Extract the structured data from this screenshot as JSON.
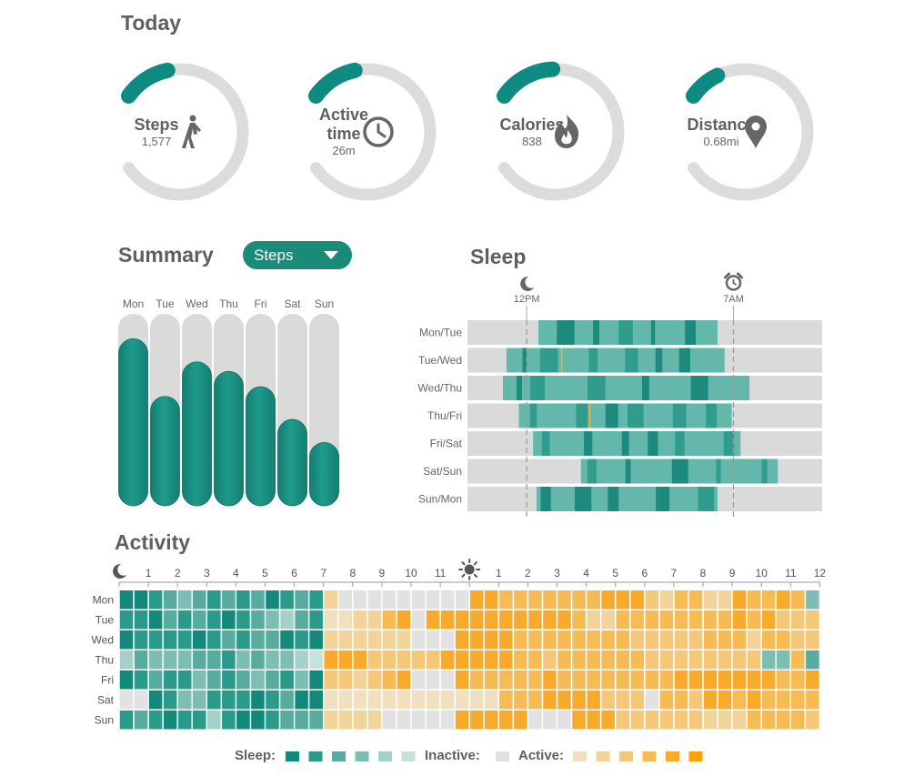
{
  "today": {
    "title": "Today",
    "rings": [
      {
        "id": "steps",
        "label": "Steps",
        "value": "1,577",
        "progress": 0.15,
        "icon": "walking-person-icon"
      },
      {
        "id": "active",
        "label": "Active",
        "label2": "time",
        "value": "26m",
        "progress": 0.15,
        "icon": "clock-icon"
      },
      {
        "id": "calories",
        "label": "Calories",
        "value": "838",
        "progress": 0.18,
        "icon": "flame-icon"
      },
      {
        "id": "distance",
        "label": "Distance",
        "value": "0.68mi",
        "progress": 0.1,
        "icon": "map-pin-icon"
      }
    ]
  },
  "summary": {
    "title": "Summary",
    "dropdown": {
      "selected": "Steps"
    },
    "days": [
      "Mon",
      "Tue",
      "Wed",
      "Thu",
      "Fri",
      "Sat",
      "Sun"
    ],
    "values": [
      0.87,
      0.57,
      0.75,
      0.7,
      0.62,
      0.45,
      0.33
    ]
  },
  "sleep": {
    "title": "Sleep",
    "marker_start": "12PM",
    "marker_end": "7AM",
    "rows": [
      {
        "label": "Mon/Tue",
        "start": 0.2,
        "end": 0.705
      },
      {
        "label": "Tue/Wed",
        "start": 0.11,
        "end": 0.725
      },
      {
        "label": "Wed/Thu",
        "start": 0.1,
        "end": 0.795
      },
      {
        "label": "Thu/Fri",
        "start": 0.145,
        "end": 0.745
      },
      {
        "label": "Fri/Sat",
        "start": 0.185,
        "end": 0.77
      },
      {
        "label": "Sat/Sun",
        "start": 0.32,
        "end": 0.875
      },
      {
        "label": "Sun/Mon",
        "start": 0.195,
        "end": 0.705
      }
    ]
  },
  "activity": {
    "title": "Activity",
    "hours": [
      "1",
      "2",
      "3",
      "4",
      "5",
      "6",
      "7",
      "8",
      "9",
      "10",
      "11",
      "1",
      "2",
      "3",
      "4",
      "5",
      "6",
      "7",
      "8",
      "9",
      "10",
      "11",
      "12"
    ],
    "days": [
      "Mon",
      "Tue",
      "Wed",
      "Thu",
      "Fri",
      "Sat",
      "Sun"
    ],
    "grid": [
      "001232121201212666666666554444444555324422544543222222110101203",
      "110212101234211122456555555555542244444444545333333210102204123",
      "011110121220102222226665555444444443333344424433332111112205444",
      "423332213233455553333355555443444444333333333342111222113333555",
      "012113212321303323456665444445444444445555555445444443335456666",
      "660133111012000000001000004445555333644355454444443444444666666",
      "121011410012222222666665555566655533333322244443444434444666666"
    ],
    "colors": [
      "#12897a",
      "#2a9a8a",
      "#57ab9f",
      "#7ebdb4",
      "#a6d1ca",
      "#c6e2dd",
      "#e2e2e2",
      "#f0e0c0",
      "#f2d39a",
      "#f4c779",
      "#f7bb54",
      "#f9aa2a",
      "#fba300"
    ]
  },
  "legend": {
    "sleep": "Sleep:",
    "inactive": "Inactive:",
    "active": "Active:"
  }
}
